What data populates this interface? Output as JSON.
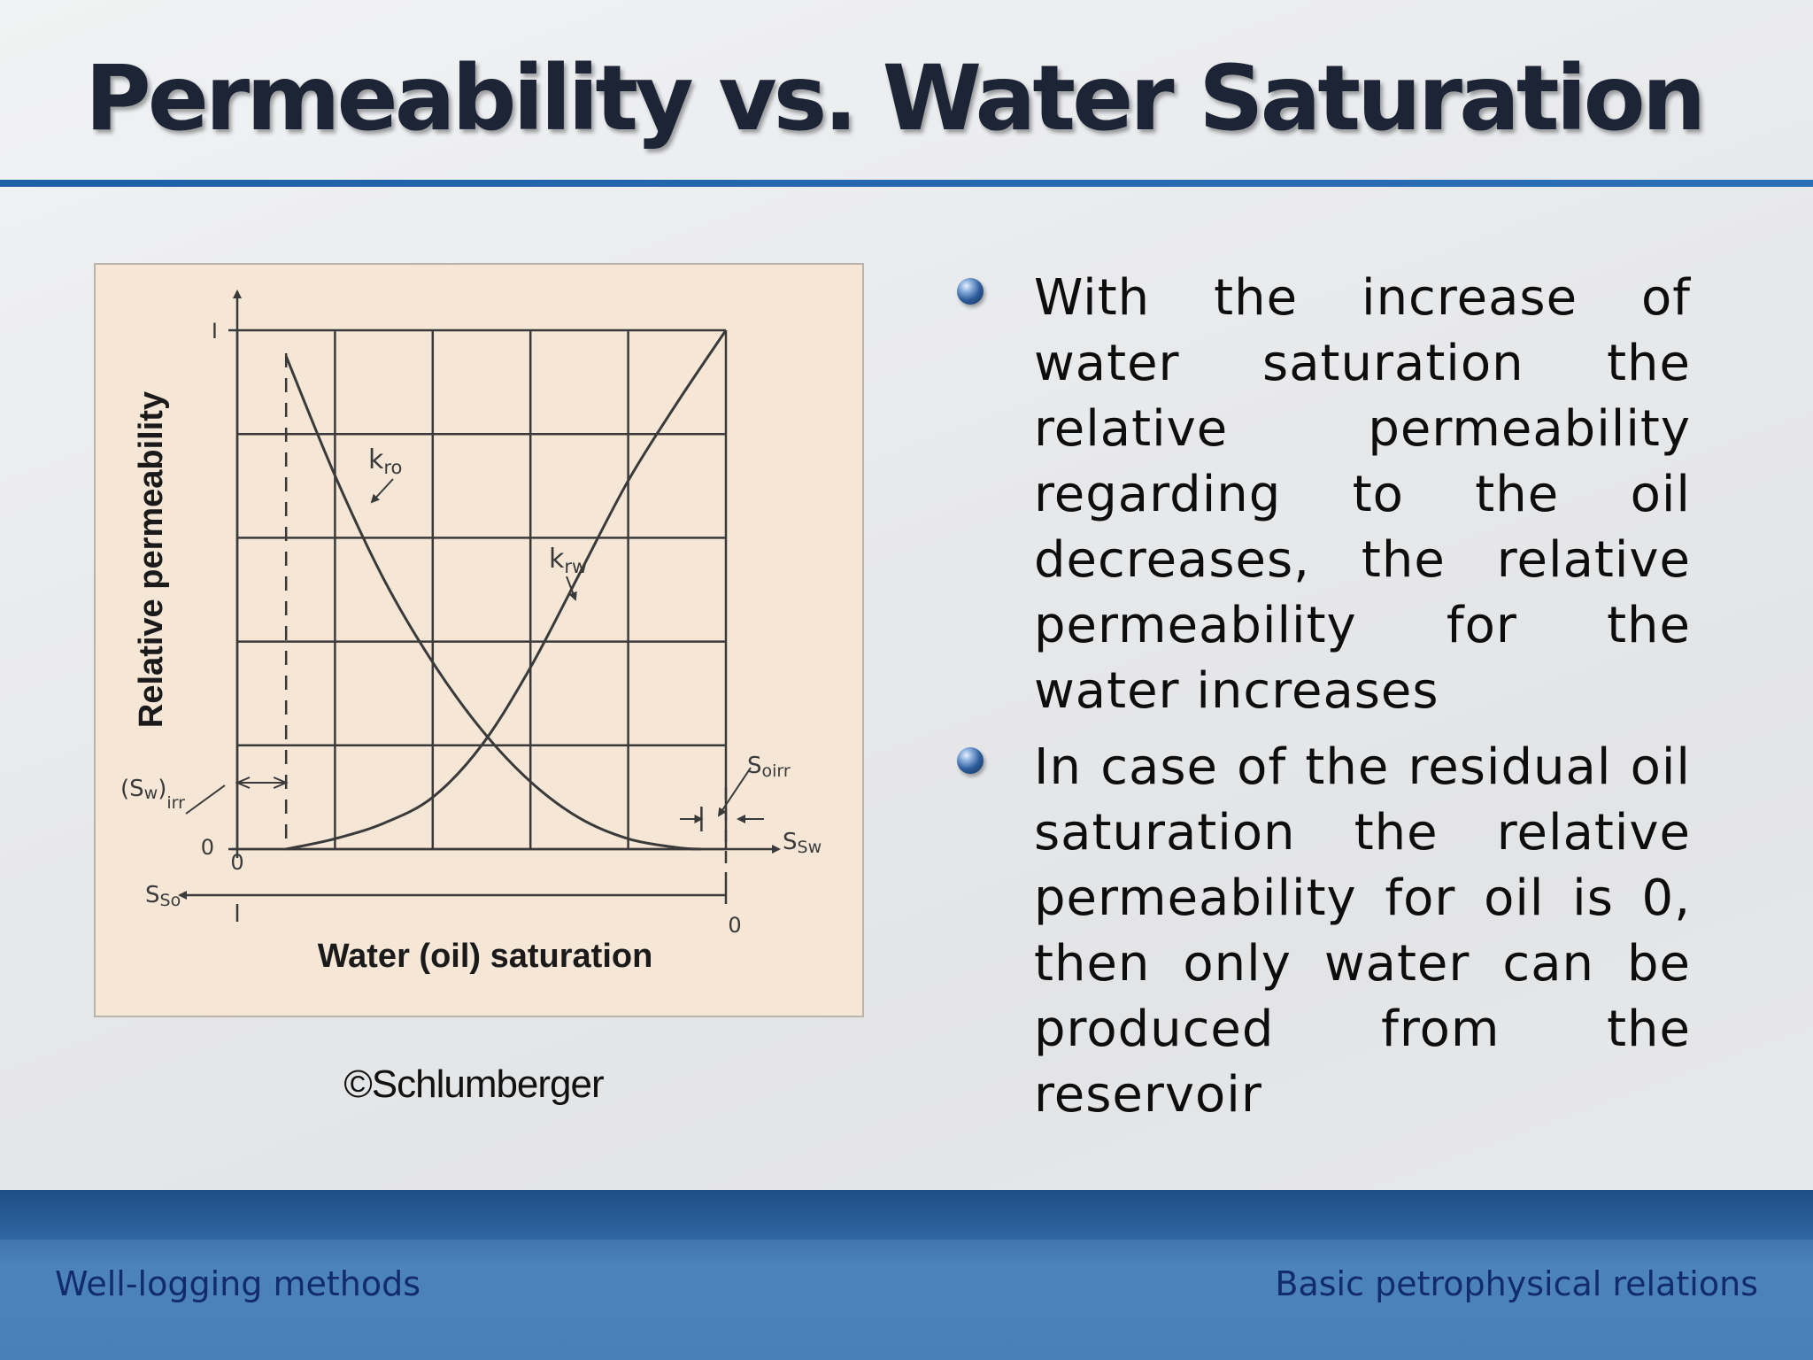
{
  "slide": {
    "title": "Permeability vs. Water Saturation",
    "credit": "©Schlumberger",
    "bullets": [
      "With the increase of water saturation the relative permeability regarding to the oil decreases, the relative permeability for the water increases",
      "In case of the residual oil saturation the relative permeability for oil is 0, then only water can be produced from the reservoir"
    ],
    "footer_left": "Well-logging methods",
    "footer_right": "Basic petrophysical relations"
  },
  "colors": {
    "title_text": "#1c2435",
    "accent_rule": "#1f5fa8",
    "chart_background": "#f5e6d6",
    "chart_ink": "#3a3a3a",
    "footer_text": "#122a6e",
    "footer_background": "#3d72ad"
  },
  "chart_data": {
    "type": "line",
    "ylabel": "Relative permeability",
    "xlabel": "Water (oil) saturation",
    "x_axis_label": "Sw",
    "secondary_axis_label": "So",
    "xlim": [
      0,
      1
    ],
    "ylim": [
      0,
      1
    ],
    "y_ticks": [
      "0",
      "I"
    ],
    "x_ticks": [
      "0"
    ],
    "so_ticks": [
      "0"
    ],
    "grid": true,
    "grid_divisions": {
      "x": 5,
      "y": 5
    },
    "series": [
      {
        "name": "kro",
        "label_main": "k",
        "label_sub": "ro",
        "x": [
          0.1,
          0.2,
          0.3,
          0.4,
          0.5,
          0.6,
          0.7,
          0.8,
          0.9,
          0.95
        ],
        "y": [
          0.95,
          0.72,
          0.52,
          0.36,
          0.23,
          0.13,
          0.06,
          0.02,
          0.003,
          0.0
        ]
      },
      {
        "name": "krw",
        "label_main": "k",
        "label_sub": "rw",
        "x": [
          0.1,
          0.2,
          0.3,
          0.4,
          0.5,
          0.6,
          0.7,
          0.8,
          0.9,
          1.0
        ],
        "y": [
          0.0,
          0.02,
          0.05,
          0.1,
          0.2,
          0.35,
          0.53,
          0.71,
          0.86,
          1.0
        ]
      }
    ],
    "annotations": [
      {
        "name": "swirr",
        "main": "(S",
        "sub1": "w",
        "close": ")",
        "sub2": "irr",
        "x": 0.1
      },
      {
        "name": "soirr",
        "main": "S",
        "sub": "oirr",
        "x": 0.95
      }
    ]
  }
}
